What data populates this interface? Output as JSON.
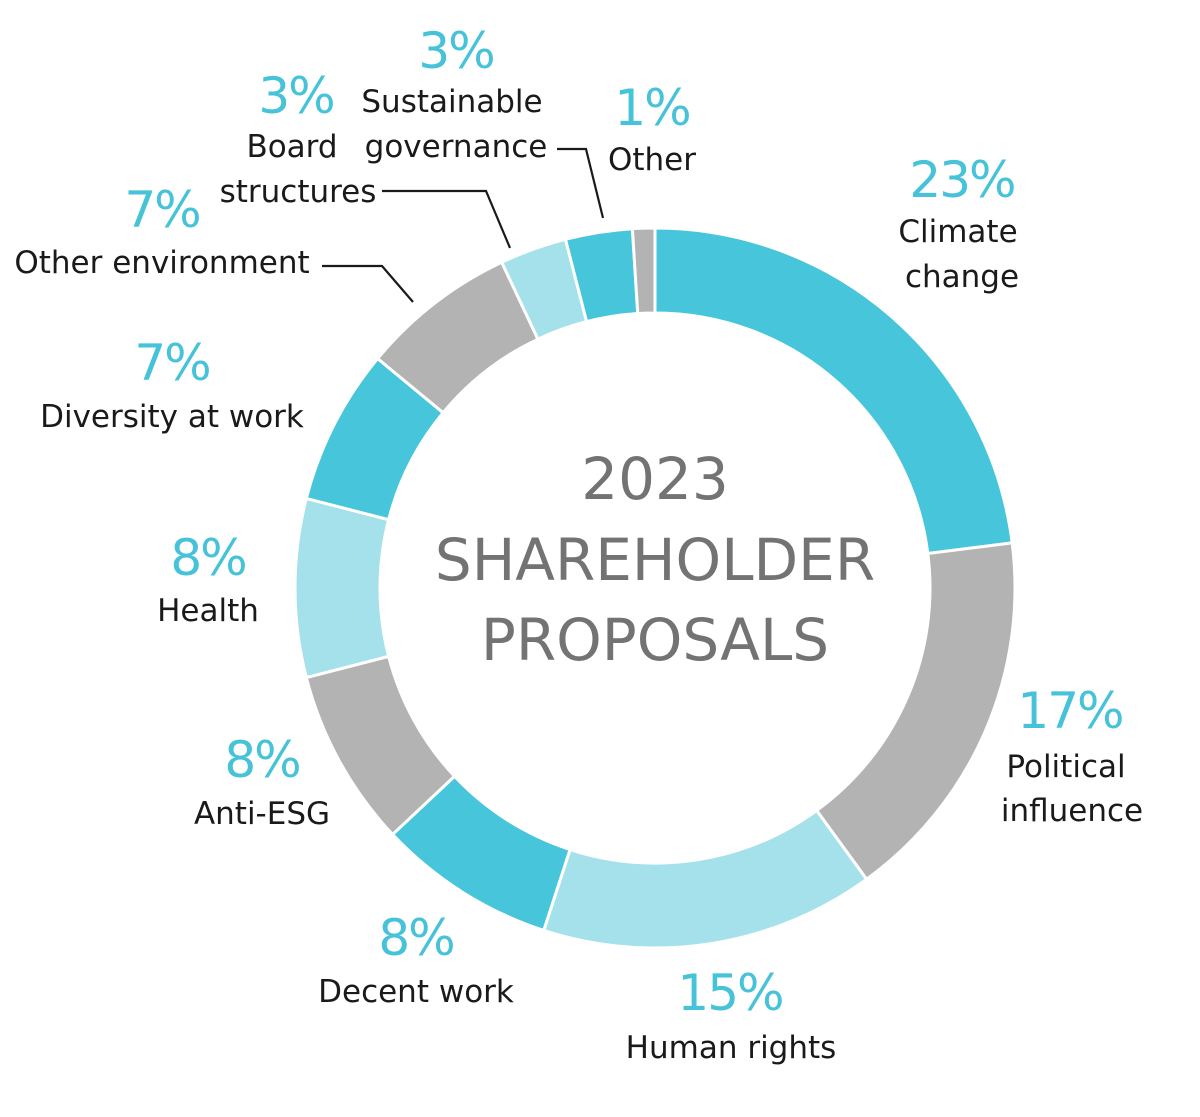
{
  "chart_data": {
    "type": "pie",
    "style": "donut",
    "title_lines": [
      "2023",
      "SHAREHOLDER",
      "PROPOSALS"
    ],
    "colors": {
      "teal": "#46c5db",
      "gray": "#b3b3b3",
      "light_teal": "#a5e1eb",
      "percent_text": "#46c2d9",
      "center_text": "#737373",
      "label_text": "#1a1a1a"
    },
    "slices": [
      {
        "id": "climate-change",
        "label": [
          "Climate",
          "change"
        ],
        "value": 23,
        "percent_label": "23%",
        "color": "#46c5db"
      },
      {
        "id": "political-influence",
        "label": [
          "Political",
          "influence"
        ],
        "value": 17,
        "percent_label": "17%",
        "color": "#b3b3b3"
      },
      {
        "id": "human-rights",
        "label": [
          "Human rights"
        ],
        "value": 15,
        "percent_label": "15%",
        "color": "#a5e1eb"
      },
      {
        "id": "decent-work",
        "label": [
          "Decent work"
        ],
        "value": 8,
        "percent_label": "8%",
        "color": "#46c5db"
      },
      {
        "id": "anti-esg",
        "label": [
          "Anti-ESG"
        ],
        "value": 8,
        "percent_label": "8%",
        "color": "#b3b3b3"
      },
      {
        "id": "health",
        "label": [
          "Health"
        ],
        "value": 8,
        "percent_label": "8%",
        "color": "#a5e1eb"
      },
      {
        "id": "diversity-at-work",
        "label": [
          "Diversity at work"
        ],
        "value": 7,
        "percent_label": "7%",
        "color": "#46c5db"
      },
      {
        "id": "other-environment",
        "label": [
          "Other environment"
        ],
        "value": 7,
        "percent_label": "7%",
        "color": "#b3b3b3"
      },
      {
        "id": "board-structures",
        "label": [
          "Board",
          "structures"
        ],
        "value": 3,
        "percent_label": "3%",
        "color": "#a5e1eb"
      },
      {
        "id": "sustainable-governance",
        "label": [
          "Sustainable",
          "governance"
        ],
        "value": 3,
        "percent_label": "3%",
        "color": "#46c5db"
      },
      {
        "id": "other",
        "label": [
          "Other"
        ],
        "value": 1,
        "percent_label": "1%",
        "color": "#b3b3b3"
      }
    ]
  }
}
